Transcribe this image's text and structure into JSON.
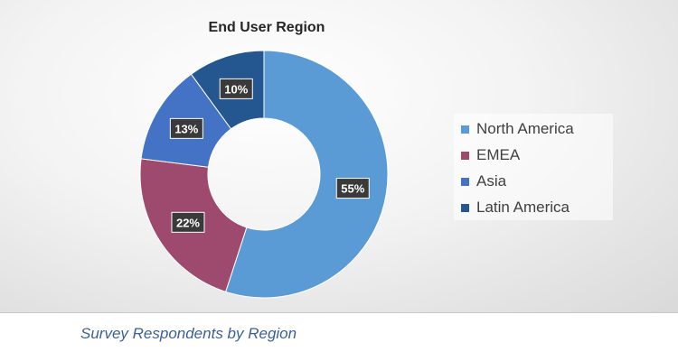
{
  "chart_data": {
    "type": "pie",
    "donut": true,
    "title": "End User Region",
    "categories": [
      "North America",
      "EMEA",
      "Asia",
      "Latin America"
    ],
    "values": [
      55,
      22,
      13,
      10
    ],
    "labels": [
      "55%",
      "22%",
      "13%",
      "10%"
    ],
    "colors": [
      "#5b9bd5",
      "#9e4a6e",
      "#4472c4",
      "#24578f"
    ],
    "legend_position": "right"
  },
  "caption": "Survey Respondents by Region"
}
